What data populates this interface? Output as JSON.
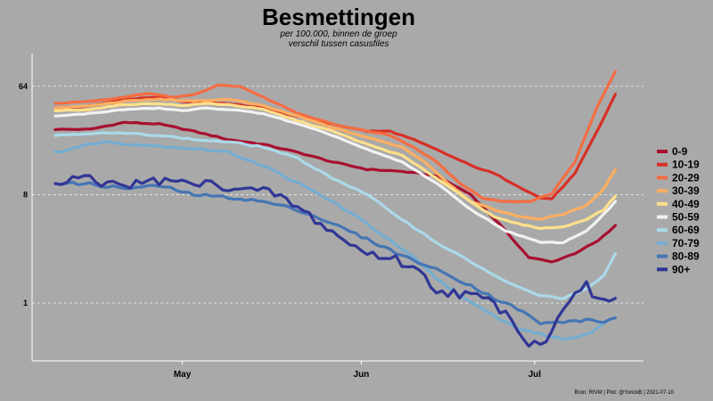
{
  "chart_data": {
    "type": "line",
    "title": "Besmettingen",
    "subtitle_lines": [
      "per 100.000, binnen de groep",
      "verschil tussen casusfiles"
    ],
    "y_scale": "log2",
    "ylim": [
      0.33,
      120
    ],
    "y_ticks": [
      {
        "value": 1,
        "label": "1"
      },
      {
        "value": 8,
        "label": "8"
      },
      {
        "value": 64,
        "label": "64"
      }
    ],
    "x_days_range": [
      0,
      98
    ],
    "x_ticks": [
      {
        "day": 22,
        "label": "May"
      },
      {
        "day": 53,
        "label": "Jun"
      },
      {
        "day": 83,
        "label": "Jul"
      }
    ],
    "caption": "Bron: RIVM | Plot: @YorickB  |  2021-07-10",
    "series": [
      {
        "name": "0-9",
        "color": "#a8102f",
        "width": 3.2,
        "noise": 0.015,
        "points": [
          [
            0,
            28
          ],
          [
            6,
            28
          ],
          [
            12,
            32
          ],
          [
            18,
            31
          ],
          [
            24,
            27
          ],
          [
            30,
            23
          ],
          [
            36,
            21
          ],
          [
            42,
            18
          ],
          [
            48,
            15
          ],
          [
            54,
            13
          ],
          [
            60,
            12.5
          ],
          [
            66,
            11.5
          ],
          [
            72,
            8
          ],
          [
            77,
            4.5
          ],
          [
            82,
            2.4
          ],
          [
            86,
            2.2
          ],
          [
            90,
            2.6
          ],
          [
            94,
            3.3
          ],
          [
            97,
            4.4
          ]
        ]
      },
      {
        "name": "10-19",
        "color": "#d73027",
        "width": 3.2,
        "noise": 0.015,
        "points": [
          [
            0,
            42
          ],
          [
            6,
            44
          ],
          [
            12,
            50
          ],
          [
            18,
            52
          ],
          [
            22,
            48
          ],
          [
            26,
            47
          ],
          [
            30,
            46
          ],
          [
            36,
            42
          ],
          [
            42,
            36
          ],
          [
            48,
            31
          ],
          [
            54,
            27
          ],
          [
            58,
            27
          ],
          [
            62,
            23
          ],
          [
            66,
            19
          ],
          [
            72,
            14
          ],
          [
            76,
            12
          ],
          [
            80,
            9.5
          ],
          [
            84,
            7.5
          ],
          [
            86,
            7.4
          ],
          [
            90,
            12
          ],
          [
            94,
            28
          ],
          [
            97,
            55
          ]
        ]
      },
      {
        "name": "20-29",
        "color": "#f46d43",
        "width": 3.2,
        "noise": 0.012,
        "points": [
          [
            0,
            46
          ],
          [
            6,
            48
          ],
          [
            12,
            52
          ],
          [
            16,
            56
          ],
          [
            20,
            52
          ],
          [
            24,
            54
          ],
          [
            28,
            65
          ],
          [
            32,
            64
          ],
          [
            36,
            52
          ],
          [
            42,
            38
          ],
          [
            48,
            31
          ],
          [
            54,
            27
          ],
          [
            58,
            25
          ],
          [
            62,
            20
          ],
          [
            66,
            15
          ],
          [
            70,
            10
          ],
          [
            74,
            7.5
          ],
          [
            78,
            7
          ],
          [
            82,
            7
          ],
          [
            86,
            8.2
          ],
          [
            90,
            15
          ],
          [
            94,
            45
          ],
          [
            97,
            85
          ]
        ]
      },
      {
        "name": "30-39",
        "color": "#fdae61",
        "width": 3.2,
        "noise": 0.012,
        "points": [
          [
            0,
            42
          ],
          [
            6,
            44
          ],
          [
            12,
            48
          ],
          [
            18,
            50
          ],
          [
            24,
            48
          ],
          [
            30,
            50
          ],
          [
            36,
            44
          ],
          [
            42,
            36
          ],
          [
            48,
            29
          ],
          [
            54,
            24
          ],
          [
            60,
            20
          ],
          [
            64,
            15
          ],
          [
            68,
            10
          ],
          [
            72,
            7
          ],
          [
            76,
            6
          ],
          [
            80,
            5.3
          ],
          [
            84,
            5
          ],
          [
            88,
            5.5
          ],
          [
            92,
            6.5
          ],
          [
            95,
            9
          ],
          [
            97,
            13
          ]
        ]
      },
      {
        "name": "40-49",
        "color": "#fee08b",
        "width": 3.2,
        "noise": 0.012,
        "points": [
          [
            0,
            40
          ],
          [
            6,
            41
          ],
          [
            12,
            45
          ],
          [
            18,
            46
          ],
          [
            22,
            44
          ],
          [
            26,
            46
          ],
          [
            30,
            45
          ],
          [
            36,
            41
          ],
          [
            42,
            33
          ],
          [
            48,
            27
          ],
          [
            54,
            21
          ],
          [
            60,
            17
          ],
          [
            66,
            11
          ],
          [
            72,
            7
          ],
          [
            76,
            5.2
          ],
          [
            80,
            4.6
          ],
          [
            84,
            4.2
          ],
          [
            88,
            4.3
          ],
          [
            92,
            5
          ],
          [
            95,
            6
          ],
          [
            97,
            7.8
          ]
        ]
      },
      {
        "name": "50-59",
        "color": "#f2f2f2",
        "width": 3.2,
        "noise": 0.012,
        "points": [
          [
            0,
            36
          ],
          [
            6,
            38
          ],
          [
            12,
            41
          ],
          [
            18,
            42
          ],
          [
            22,
            40
          ],
          [
            26,
            42
          ],
          [
            30,
            41
          ],
          [
            36,
            38
          ],
          [
            42,
            31
          ],
          [
            48,
            25
          ],
          [
            54,
            19
          ],
          [
            60,
            15
          ],
          [
            66,
            10
          ],
          [
            72,
            6
          ],
          [
            78,
            4
          ],
          [
            84,
            3.2
          ],
          [
            88,
            3.2
          ],
          [
            92,
            4
          ],
          [
            95,
            5.5
          ],
          [
            97,
            7
          ]
        ]
      },
      {
        "name": "60-69",
        "color": "#abd9e9",
        "width": 3.2,
        "noise": 0.02,
        "points": [
          [
            0,
            25
          ],
          [
            6,
            26
          ],
          [
            12,
            26
          ],
          [
            18,
            25
          ],
          [
            24,
            23
          ],
          [
            30,
            22
          ],
          [
            36,
            20
          ],
          [
            42,
            16
          ],
          [
            48,
            11
          ],
          [
            54,
            8
          ],
          [
            60,
            5
          ],
          [
            66,
            3.2
          ],
          [
            72,
            2.2
          ],
          [
            78,
            1.5
          ],
          [
            84,
            1.15
          ],
          [
            88,
            1.1
          ],
          [
            92,
            1.3
          ],
          [
            95,
            1.7
          ],
          [
            97,
            2.6
          ]
        ]
      },
      {
        "name": "70-79",
        "color": "#74add1",
        "width": 3.2,
        "noise": 0.03,
        "points": [
          [
            0,
            18
          ],
          [
            4,
            20
          ],
          [
            8,
            22
          ],
          [
            14,
            21
          ],
          [
            20,
            20
          ],
          [
            26,
            19
          ],
          [
            30,
            18
          ],
          [
            36,
            14
          ],
          [
            42,
            10
          ],
          [
            48,
            7
          ],
          [
            54,
            4.6
          ],
          [
            58,
            3.3
          ],
          [
            62,
            2.4
          ],
          [
            66,
            1.6
          ],
          [
            72,
            1
          ],
          [
            76,
            0.78
          ],
          [
            80,
            0.62
          ],
          [
            84,
            0.55
          ],
          [
            88,
            0.5
          ],
          [
            92,
            0.55
          ],
          [
            95,
            0.68
          ],
          [
            97,
            0.75
          ]
        ]
      },
      {
        "name": "80-89",
        "color": "#4575b4",
        "width": 3.2,
        "noise": 0.04,
        "points": [
          [
            0,
            10
          ],
          [
            6,
            9.8
          ],
          [
            12,
            9
          ],
          [
            18,
            9.5
          ],
          [
            24,
            8
          ],
          [
            30,
            7.6
          ],
          [
            36,
            7
          ],
          [
            42,
            6
          ],
          [
            48,
            4.6
          ],
          [
            54,
            3.4
          ],
          [
            60,
            2.5
          ],
          [
            66,
            1.9
          ],
          [
            72,
            1.4
          ],
          [
            76,
            1.1
          ],
          [
            80,
            0.9
          ],
          [
            84,
            0.68
          ],
          [
            86,
            0.68
          ],
          [
            88,
            0.7
          ],
          [
            92,
            0.72
          ],
          [
            95,
            0.7
          ],
          [
            97,
            0.75
          ]
        ]
      },
      {
        "name": "90+",
        "color": "#313695",
        "width": 3.2,
        "noise": 0.14,
        "points": [
          [
            0,
            9.6
          ],
          [
            4,
            11
          ],
          [
            8,
            10
          ],
          [
            14,
            9.8
          ],
          [
            18,
            10.5
          ],
          [
            22,
            10
          ],
          [
            26,
            9.8
          ],
          [
            30,
            9.4
          ],
          [
            34,
            8.6
          ],
          [
            38,
            8.2
          ],
          [
            42,
            6.2
          ],
          [
            46,
            4.6
          ],
          [
            50,
            3.3
          ],
          [
            54,
            2.6
          ],
          [
            58,
            2.4
          ],
          [
            62,
            2
          ],
          [
            66,
            1.3
          ],
          [
            70,
            1.2
          ],
          [
            74,
            1.1
          ],
          [
            78,
            0.85
          ],
          [
            80,
            0.65
          ],
          [
            82,
            0.45
          ],
          [
            84,
            0.48
          ],
          [
            86,
            0.55
          ],
          [
            88,
            0.95
          ],
          [
            90,
            1.3
          ],
          [
            92,
            1.4
          ],
          [
            94,
            1
          ],
          [
            96,
            1.1
          ],
          [
            97,
            1.05
          ]
        ]
      }
    ]
  }
}
